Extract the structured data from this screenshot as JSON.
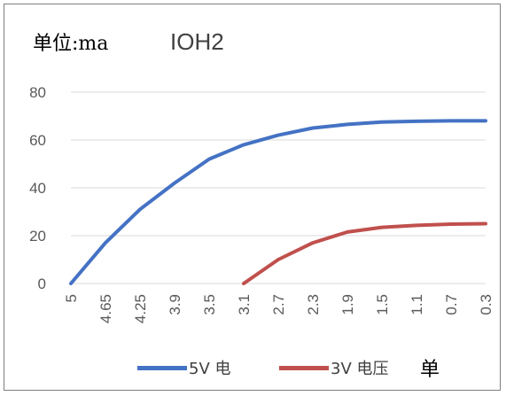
{
  "chart_data": {
    "type": "line",
    "title": "IOH2",
    "unit_label": "单位:ma",
    "x": [
      "5",
      "4.65",
      "4.25",
      "3.9",
      "3.5",
      "3.1",
      "2.7",
      "2.3",
      "1.9",
      "1.5",
      "1.1",
      "0.7",
      "0.3"
    ],
    "series": [
      {
        "name": "5V 电",
        "color": "#4472c4",
        "values": [
          0,
          17,
          31,
          42,
          52,
          58,
          62,
          65,
          66.5,
          67.5,
          67.8,
          68,
          68
        ]
      },
      {
        "name": "3V 电压",
        "color": "#c0504d",
        "values": [
          null,
          null,
          null,
          null,
          null,
          0,
          10,
          17,
          21.5,
          23.5,
          24.3,
          24.8,
          25
        ]
      }
    ],
    "legend_extra": "单",
    "ylim": [
      0,
      80
    ],
    "yticks": [
      0,
      20,
      40,
      60,
      80
    ],
    "grid": true,
    "legend_position": "bottom"
  }
}
